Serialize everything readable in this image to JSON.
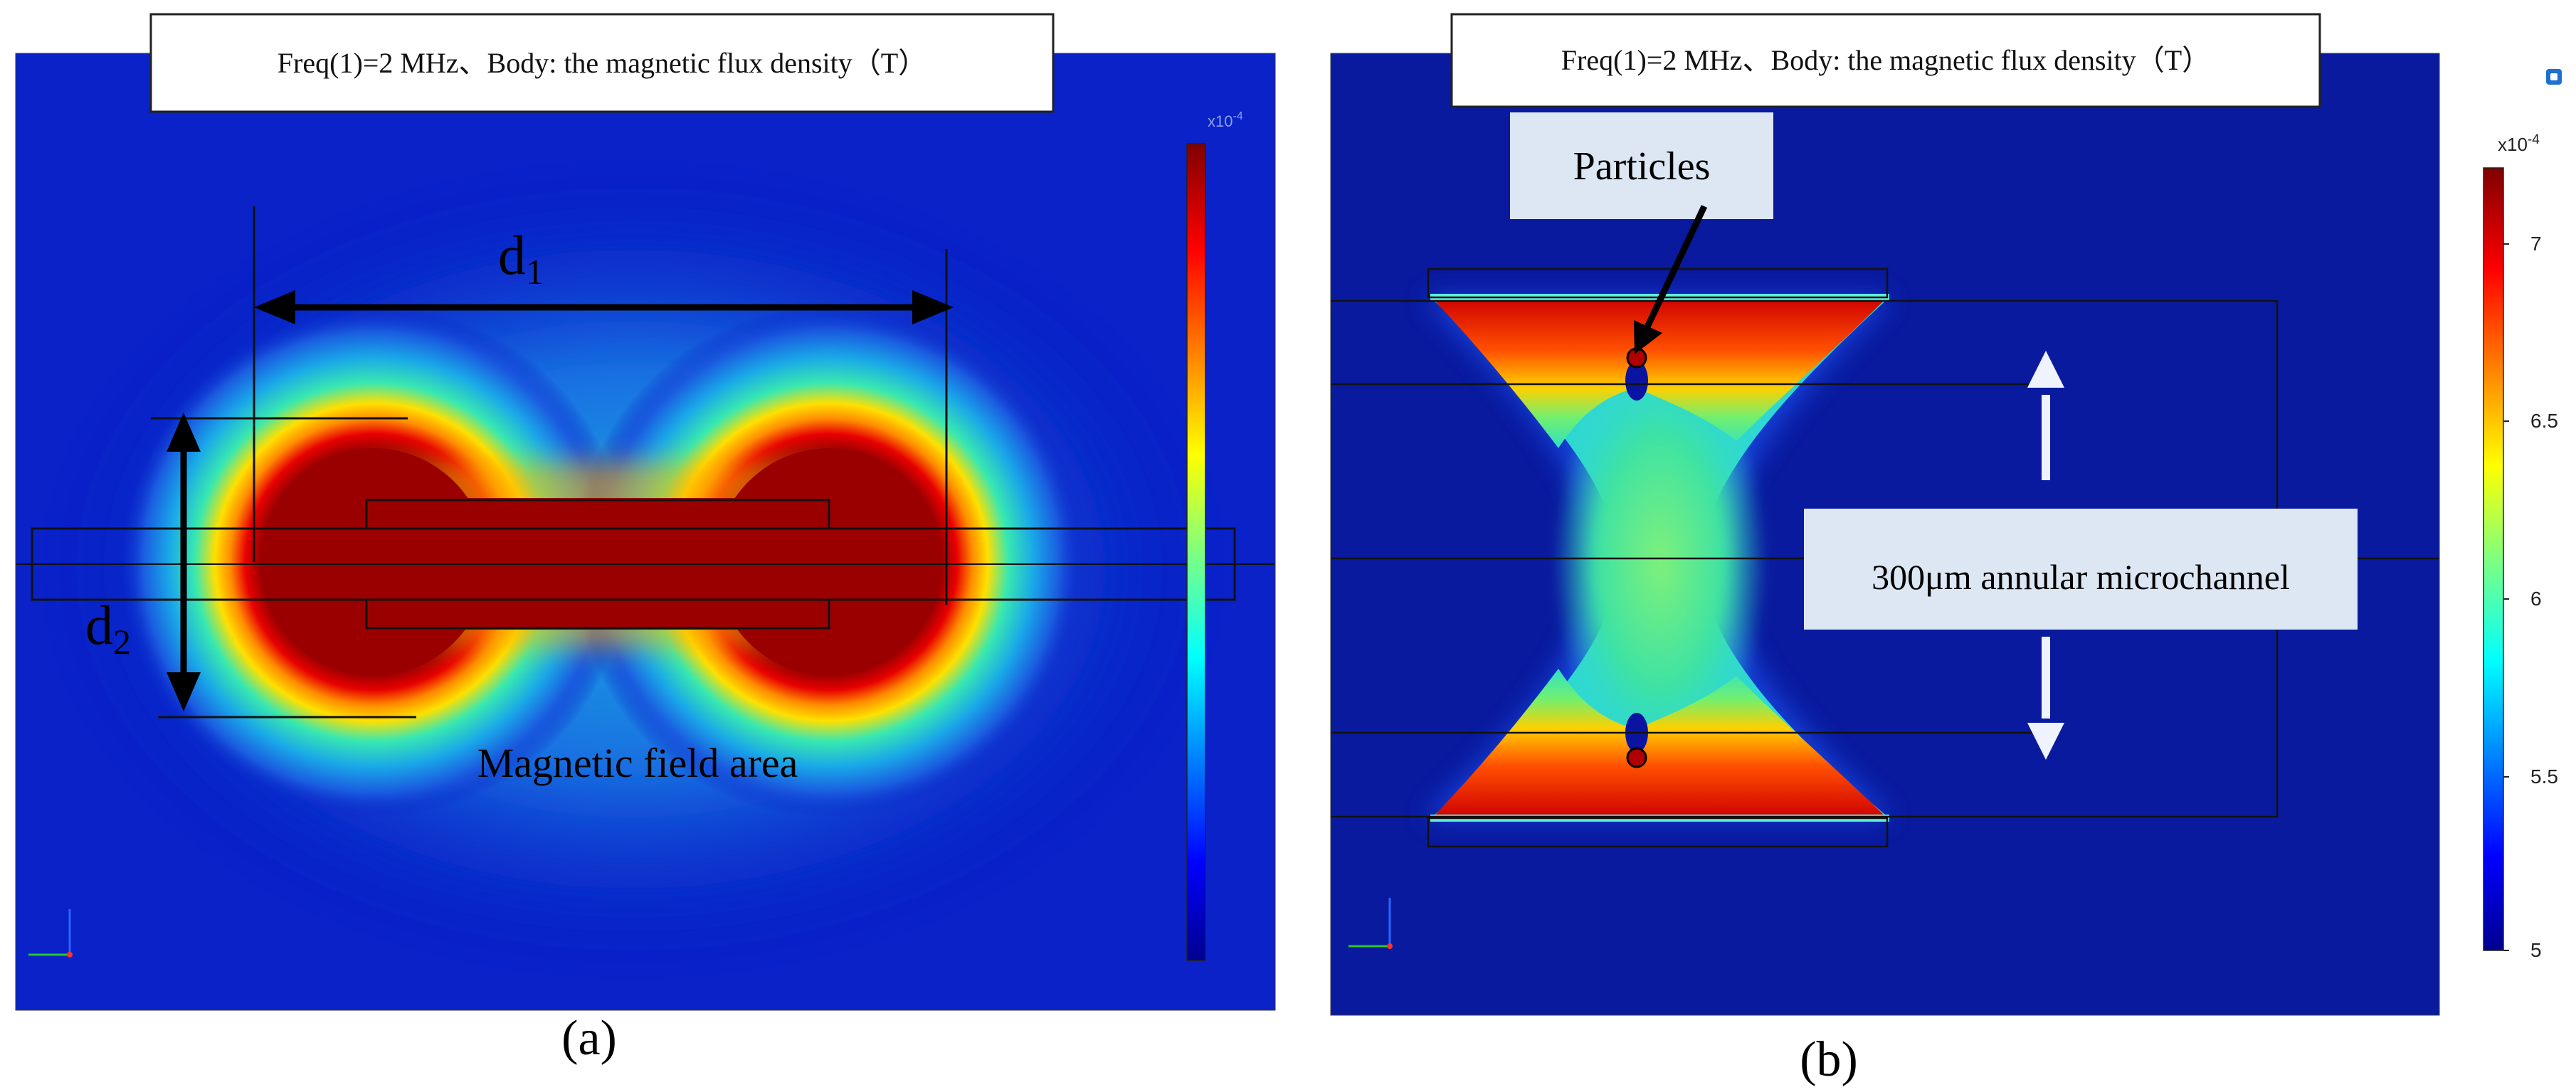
{
  "panel_a": {
    "title": "Freq(1)=2 MHz、Body: the magnetic flux density（T）",
    "label_d1": "d",
    "label_d1_sub": "1",
    "label_d2": "d",
    "label_d2_sub": "2",
    "field_label": "Magnetic field area",
    "colorbar_exponent": "x10",
    "colorbar_exponent_power": "-4",
    "caption": "(a)"
  },
  "panel_b": {
    "title": "Freq(1)=2 MHz、Body: the magnetic flux density（T）",
    "particles_label": "Particles",
    "channel_label": "300μm annular microchannel",
    "colorbar_exponent": "x10",
    "colorbar_exponent_power": "-4",
    "colorbar_ticks": [
      "7",
      "6.5",
      "6",
      "5.5",
      "5"
    ],
    "caption": "(b)"
  },
  "colors": {
    "background_blue": "#0a1fc8",
    "deep_red": "#9b0000",
    "cyan": "#2fe0d0",
    "navy": "#0b1780"
  }
}
